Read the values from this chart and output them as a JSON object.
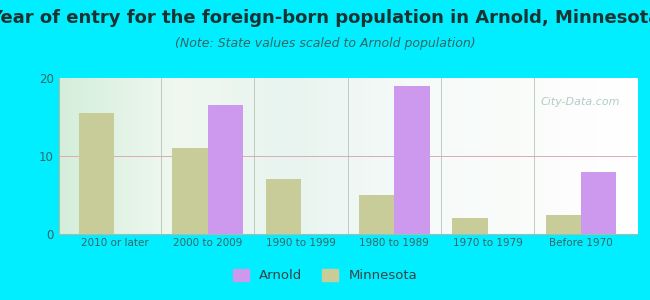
{
  "title": "Year of entry for the foreign-born population in Arnold, Minnesota",
  "subtitle": "(Note: State values scaled to Arnold population)",
  "categories": [
    "2010 or later",
    "2000 to 2009",
    "1990 to 1999",
    "1980 to 1989",
    "1970 to 1979",
    "Before 1970"
  ],
  "arnold_values": [
    0,
    16.5,
    0,
    19.0,
    0,
    8.0
  ],
  "minnesota_values": [
    15.5,
    11.0,
    7.0,
    5.0,
    2.0,
    2.5
  ],
  "arnold_color": "#cc99ee",
  "minnesota_color": "#c8cc99",
  "bg_outer": "#00eeff",
  "ylim": [
    0,
    20
  ],
  "yticks": [
    0,
    10,
    20
  ],
  "bar_width": 0.38,
  "title_fontsize": 13,
  "subtitle_fontsize": 9,
  "watermark": "City-Data.com"
}
